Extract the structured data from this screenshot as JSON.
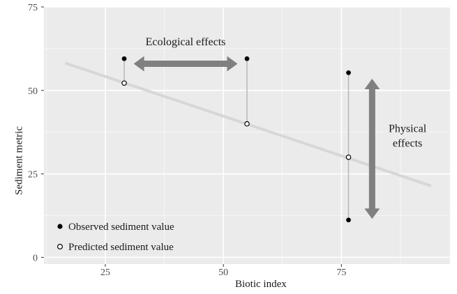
{
  "chart_data": {
    "type": "scatter",
    "xlabel": "Biotic index",
    "ylabel": "Sediment metric",
    "xlim": [
      12,
      98
    ],
    "ylim": [
      -2,
      75
    ],
    "x_ticks": [
      25,
      50,
      75
    ],
    "y_ticks": [
      0,
      25,
      50,
      75
    ],
    "grid": true,
    "legend_position": "bottom-left",
    "regression_line": {
      "x": [
        16.5,
        94
      ],
      "y": [
        58.2,
        21.4
      ]
    },
    "series": [
      {
        "name": "Observed sediment value",
        "marker": "filled",
        "points": [
          {
            "x": 29,
            "y": 59.5
          },
          {
            "x": 55,
            "y": 59.5
          },
          {
            "x": 76.5,
            "y": 55.3
          },
          {
            "x": 76.5,
            "y": 11.2
          }
        ]
      },
      {
        "name": "Predicted sediment value",
        "marker": "open",
        "points": [
          {
            "x": 29,
            "y": 52.2
          },
          {
            "x": 55,
            "y": 40.0
          },
          {
            "x": 76.5,
            "y": 30.0
          }
        ]
      }
    ],
    "annotations": [
      {
        "label": "Ecological effects",
        "direction": "horizontal",
        "from": {
          "x": 31,
          "y": 58
        },
        "to": {
          "x": 53,
          "y": 58
        },
        "text_at": {
          "x": 42,
          "y": 63.5
        },
        "lines": [
          "Ecological effects"
        ]
      },
      {
        "label": "Physical effects",
        "direction": "vertical",
        "from": {
          "x": 81.5,
          "y": 53.5
        },
        "to": {
          "x": 81.5,
          "y": 11.5
        },
        "text_at": {
          "x": 89,
          "y": 37.5
        },
        "lines": [
          "Physical",
          "effects"
        ]
      }
    ],
    "colors": {
      "panel_background": "#ebebeb",
      "gridline": "#ffffff",
      "regression_line": "#d7d7d7",
      "connector": "#b3b3b3",
      "arrow": "#808080",
      "point": "#000000"
    }
  }
}
